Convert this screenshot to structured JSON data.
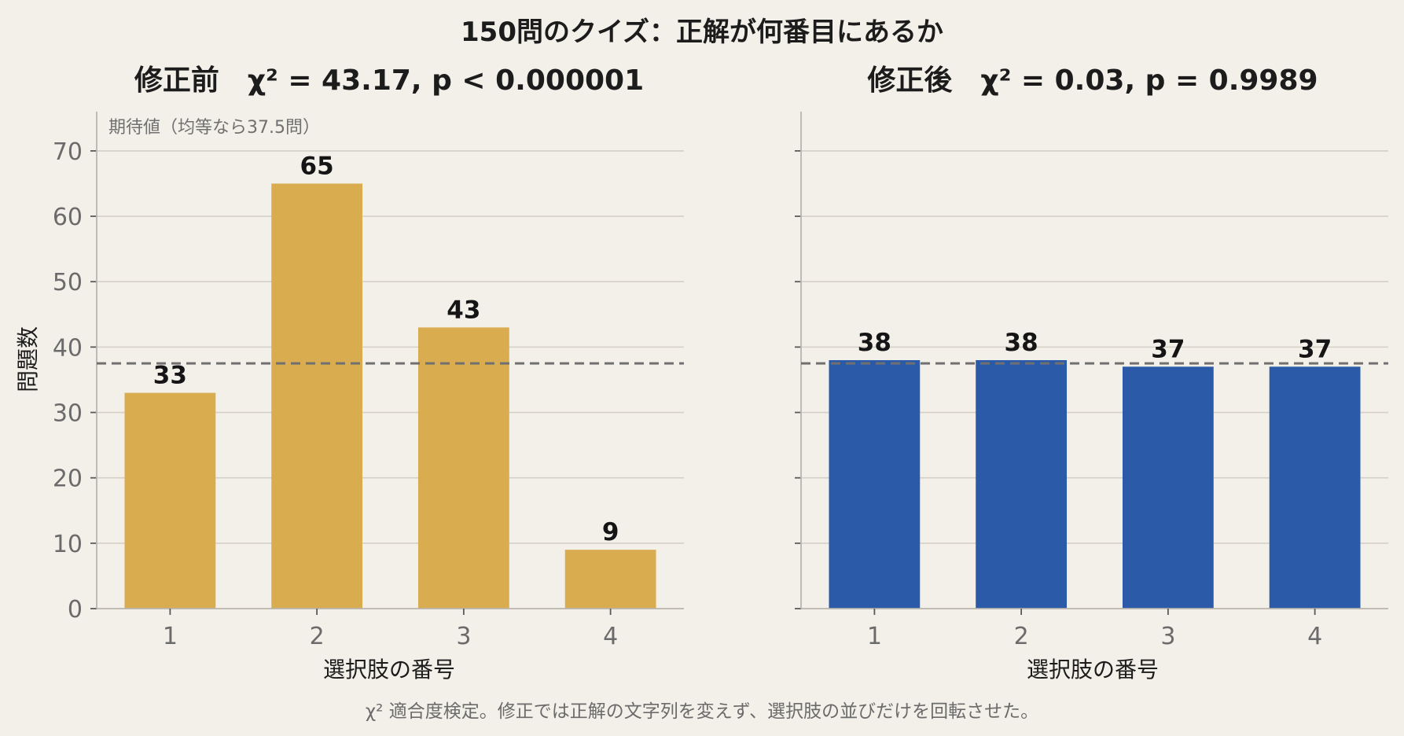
{
  "figure": {
    "suptitle": "150問のクイズ：正解が何番目にあるか",
    "footnote": "χ² 適合度検定。修正では正解の文字列を変えず、選択肢の並びだけを回転させた。"
  },
  "chart_data": [
    {
      "type": "bar",
      "title": "修正前　χ² = 43.17,  p < 0.000001",
      "xlabel": "選択肢の番号",
      "ylabel": "問題数",
      "categories": [
        "1",
        "2",
        "3",
        "4"
      ],
      "values": [
        33,
        65,
        43,
        9
      ],
      "ylim": [
        0,
        76
      ],
      "yticks": [
        0,
        10,
        20,
        30,
        40,
        50,
        60,
        70
      ],
      "expected": 37.5,
      "expected_label": "期待値（均等なら37.5問）",
      "color": "#d8ac4f",
      "grid": true
    },
    {
      "type": "bar",
      "title": "修正後　χ² = 0.03,  p = 0.9989",
      "xlabel": "選択肢の番号",
      "ylabel": "",
      "categories": [
        "1",
        "2",
        "3",
        "4"
      ],
      "values": [
        38,
        38,
        37,
        37
      ],
      "ylim": [
        0,
        76
      ],
      "yticks": [
        0,
        10,
        20,
        30,
        40,
        50,
        60,
        70
      ],
      "expected": 37.5,
      "color": "#2b5ba8",
      "grid": true
    }
  ]
}
